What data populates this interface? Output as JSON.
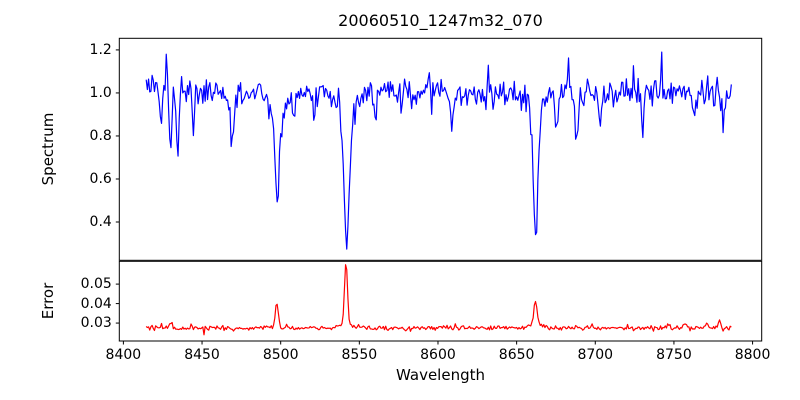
{
  "title": "20060510_1247m32_070",
  "colors": {
    "spectrum_line": "#0000ff",
    "error_line": "#ff0000",
    "axis": "#000000",
    "background": "#ffffff"
  },
  "chart_data": [
    {
      "type": "line",
      "name": "spectrum",
      "ylabel": "Spectrum",
      "color": "#0000ff",
      "legend": "none",
      "grid": false,
      "xlim": [
        8397.4,
        8805.8
      ],
      "ylim": [
        0.222,
        1.254
      ],
      "yticks": {
        "values": [
          0.4,
          0.6,
          0.8,
          1.0,
          1.2
        ],
        "labels": [
          "0.4",
          "0.6",
          "0.8",
          "1.0",
          "1.2"
        ]
      },
      "x_start": 8414.5,
      "x_end": 8786.5,
      "dx": 0.75,
      "baseline": 1.0,
      "noise_sigma": 0.033,
      "noise_heavy_tail_prob": 0.06,
      "noise_heavy_tail_factor": 2.2,
      "seed": 1182,
      "features": [
        {
          "center": 8424.0,
          "amp": -0.1,
          "sigma": 0.7
        },
        {
          "center": 8427.3,
          "amp": 0.22,
          "sigma": 0.6
        },
        {
          "center": 8430.0,
          "amp": -0.24,
          "sigma": 0.7
        },
        {
          "center": 8434.5,
          "amp": -0.26,
          "sigma": 0.8
        },
        {
          "center": 8444.5,
          "amp": -0.2,
          "sigma": 0.8
        },
        {
          "center": 8469.0,
          "amp": -0.25,
          "sigma": 0.9
        },
        {
          "center": 8498.0,
          "amp": -0.46,
          "sigma": 1.4
        },
        {
          "center": 8498.0,
          "amp": -0.08,
          "sigma": 4.0
        },
        {
          "center": 8508.0,
          "amp": -0.13,
          "sigma": 0.9
        },
        {
          "center": 8521.0,
          "amp": -0.12,
          "sigma": 0.8
        },
        {
          "center": 8542.0,
          "amp": -0.62,
          "sigma": 1.7
        },
        {
          "center": 8542.0,
          "amp": -0.1,
          "sigma": 5.0
        },
        {
          "center": 8560.0,
          "amp": -0.13,
          "sigma": 0.8
        },
        {
          "center": 8609.0,
          "amp": -0.15,
          "sigma": 0.9
        },
        {
          "center": 8662.0,
          "amp": -0.54,
          "sigma": 1.5
        },
        {
          "center": 8662.0,
          "amp": -0.09,
          "sigma": 4.0
        },
        {
          "center": 8675.0,
          "amp": -0.17,
          "sigma": 0.9
        },
        {
          "center": 8683.0,
          "amp": 0.15,
          "sigma": 0.7
        },
        {
          "center": 8688.0,
          "amp": -0.19,
          "sigma": 0.9
        },
        {
          "center": 8703.0,
          "amp": -0.16,
          "sigma": 0.9
        },
        {
          "center": 8730.0,
          "amp": -0.14,
          "sigma": 0.9
        },
        {
          "center": 8742.0,
          "amp": 0.11,
          "sigma": 0.7
        },
        {
          "center": 8763.0,
          "amp": -0.14,
          "sigma": 0.9
        },
        {
          "center": 8781.0,
          "amp": -0.13,
          "sigma": 1.1
        }
      ]
    },
    {
      "type": "line",
      "name": "error",
      "ylabel": "Error",
      "xlabel": "Wavelength",
      "color": "#ff0000",
      "legend": "none",
      "grid": false,
      "xlim": [
        8397.4,
        8805.8
      ],
      "ylim": [
        0.0208,
        0.0617
      ],
      "yticks": {
        "values": [
          0.03,
          0.04,
          0.05
        ],
        "labels": [
          "0.03",
          "0.04",
          "0.05"
        ]
      },
      "xticks": {
        "values": [
          8400,
          8450,
          8500,
          8550,
          8600,
          8650,
          8700,
          8750,
          8800
        ],
        "labels": [
          "8400",
          "8450",
          "8500",
          "8550",
          "8600",
          "8650",
          "8700",
          "8750",
          "8800"
        ]
      },
      "x_start": 8414.5,
      "x_end": 8786.5,
      "dx": 0.75,
      "baseline": 0.0275,
      "noise_sigma": 0.0006,
      "noise_heavy_tail_prob": 0.06,
      "noise_heavy_tail_factor": 2.0,
      "seed": 77,
      "features": [
        {
          "center": 8430.0,
          "amp": 0.0018,
          "sigma": 1.0
        },
        {
          "center": 8497.5,
          "amp": 0.0135,
          "sigma": 0.9
        },
        {
          "center": 8541.5,
          "amp": 0.031,
          "sigma": 0.9
        },
        {
          "center": 8541.5,
          "amp": 0.0028,
          "sigma": 3.0
        },
        {
          "center": 8662.0,
          "amp": 0.0125,
          "sigma": 1.0
        },
        {
          "center": 8662.0,
          "amp": 0.002,
          "sigma": 3.0
        },
        {
          "center": 8746.0,
          "amp": 0.0018,
          "sigma": 0.8
        },
        {
          "center": 8757.0,
          "amp": 0.003,
          "sigma": 0.8
        },
        {
          "center": 8771.0,
          "amp": 0.0025,
          "sigma": 0.8
        },
        {
          "center": 8779.0,
          "amp": 0.0038,
          "sigma": 0.8
        }
      ]
    }
  ]
}
